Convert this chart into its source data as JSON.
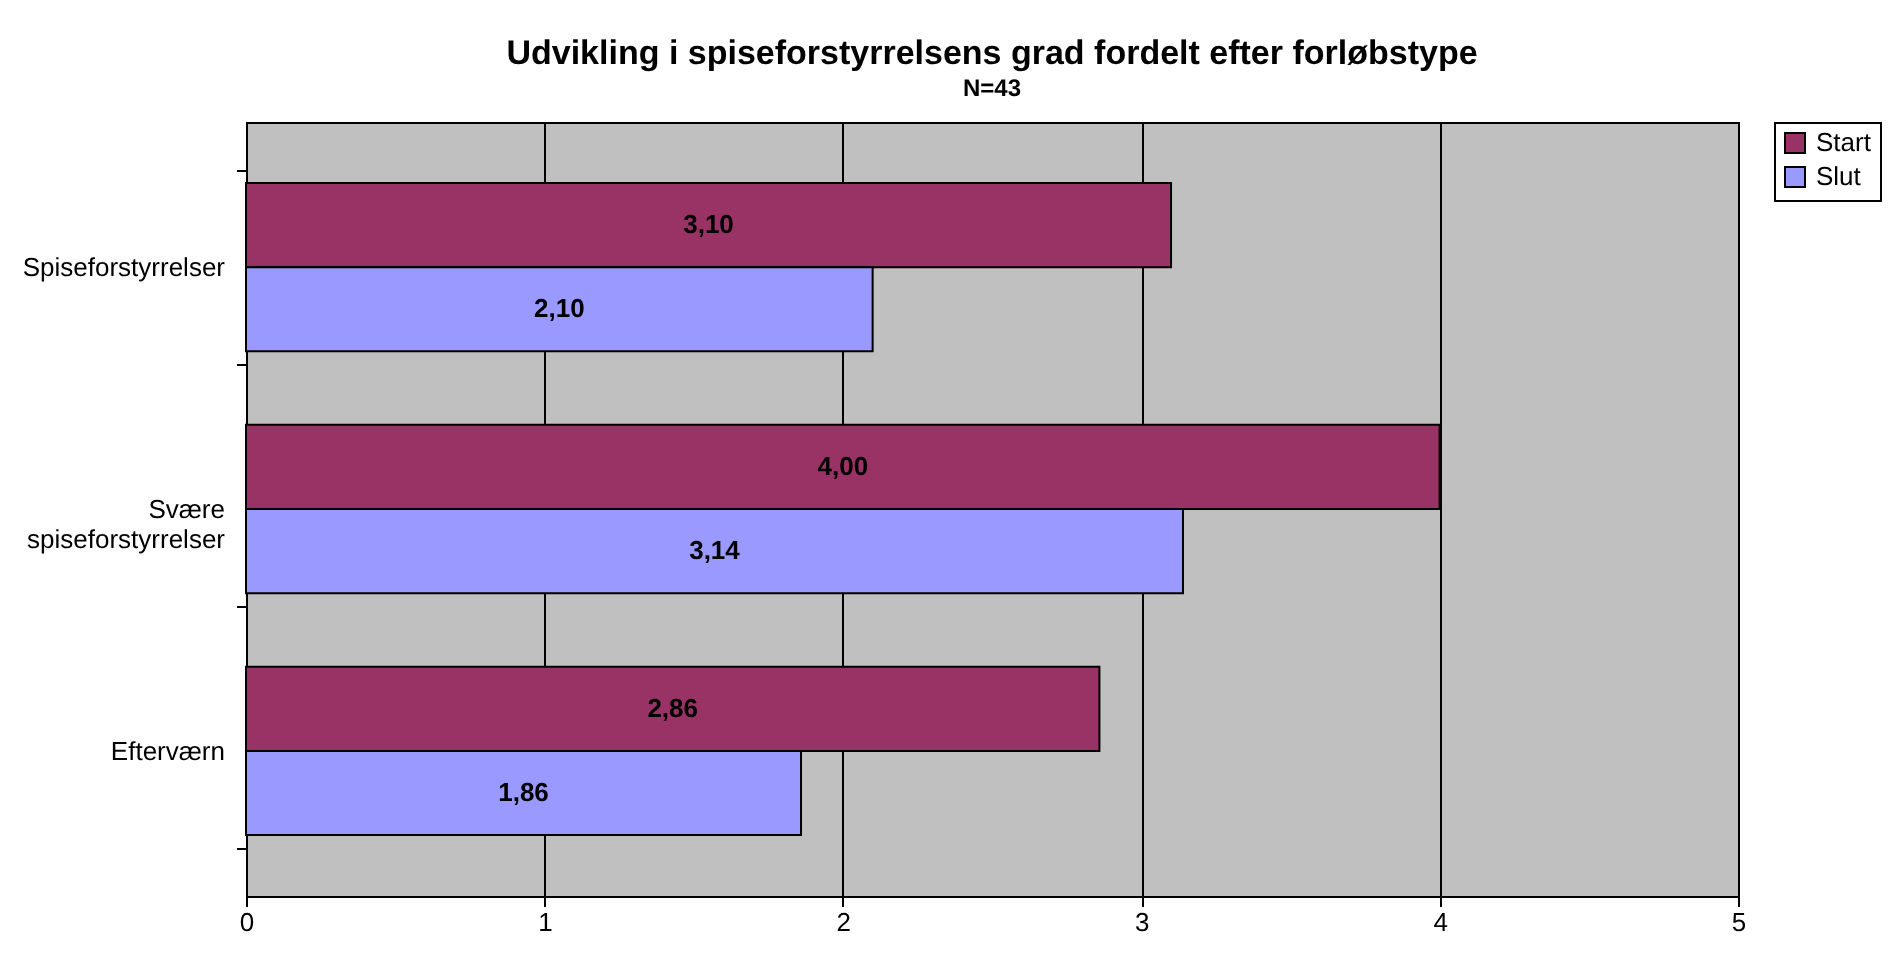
{
  "chart_data": {
    "type": "bar",
    "orientation": "horizontal",
    "title": "Udvikling i spiseforstyrrelsens grad fordelt efter forløbstype",
    "subtitle": "N=43",
    "categories": [
      "Spiseforstyrrelser",
      "Svære spiseforstyrrelser",
      "Efterværn"
    ],
    "series": [
      {
        "name": "Start",
        "color": "#993366",
        "values": [
          3.1,
          4.0,
          2.86
        ],
        "value_labels": [
          "3,10",
          "4,00",
          "2,86"
        ]
      },
      {
        "name": "Slut",
        "color": "#9999ff",
        "values": [
          2.1,
          3.14,
          1.86
        ],
        "value_labels": [
          "2,10",
          "3,14",
          "1,86"
        ]
      }
    ],
    "xlim": [
      0,
      5
    ],
    "xticks": [
      0,
      1,
      2,
      3,
      4,
      5
    ],
    "grid": "x",
    "legend": "right"
  }
}
